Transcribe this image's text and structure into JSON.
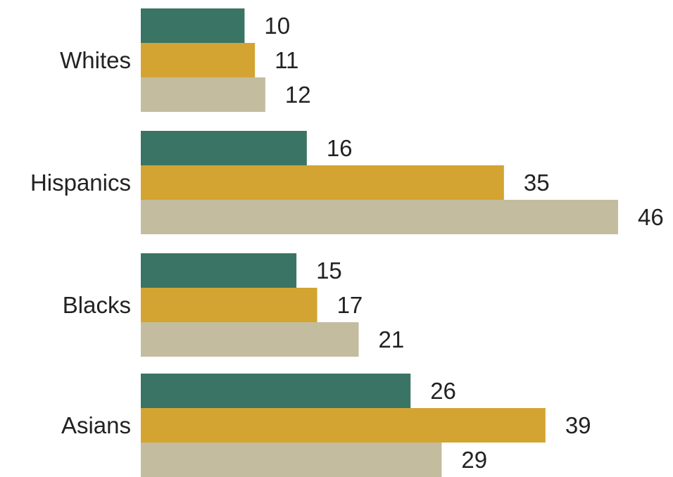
{
  "chart_data": {
    "type": "bar",
    "orientation": "horizontal",
    "categories": [
      "Whites",
      "Hispanics",
      "Blacks",
      "Asians"
    ],
    "series": [
      {
        "values": [
          10,
          16,
          15,
          26
        ],
        "color": "#3a7464"
      },
      {
        "values": [
          11,
          35,
          17,
          39
        ],
        "color": "#d3a431"
      },
      {
        "values": [
          12,
          46,
          21,
          29
        ],
        "color": "#c3bc9f"
      }
    ],
    "xlim": [
      0,
      46
    ],
    "grid": false,
    "legend": "none"
  }
}
